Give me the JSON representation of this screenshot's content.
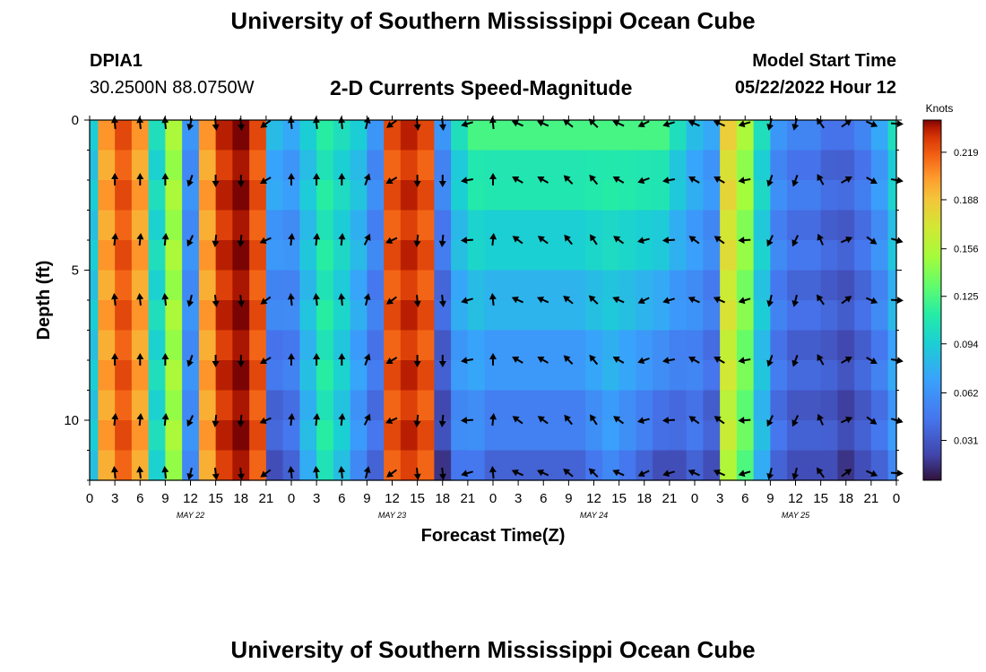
{
  "page": {
    "title": "University of Southern Mississippi Ocean Cube",
    "footer_title": "University of Southern Mississippi Ocean Cube"
  },
  "header": {
    "station_id": "DPIA1",
    "coordinates": "30.2500N  88.0750W",
    "plot_title": "2-D Currents Speed-Magnitude",
    "model_start_label": "Model Start Time",
    "model_start_value": "05/22/2022 Hour 12"
  },
  "chart_data": {
    "type": "heatmap",
    "title": "2-D Currents Speed-Magnitude",
    "xlabel": "Forecast Time(Z)",
    "ylabel": "Depth (ft)",
    "ylim": [
      0,
      12
    ],
    "y_ticks": [
      "0",
      "5",
      "10"
    ],
    "y_tick_values": [
      0,
      5,
      10
    ],
    "x_hours": [
      0,
      3,
      6,
      9,
      12,
      15,
      18,
      21,
      0,
      3,
      6,
      9,
      12,
      15,
      18,
      21,
      0,
      3,
      6,
      9,
      12,
      15,
      18,
      21,
      0,
      3,
      6,
      9,
      12,
      15,
      18,
      21,
      0
    ],
    "x_tick_labels": [
      "0",
      "3",
      "6",
      "9",
      "12",
      "15",
      "18",
      "21",
      "0",
      "3",
      "6",
      "9",
      "12",
      "15",
      "18",
      "21",
      "0",
      "3",
      "6",
      "9",
      "12",
      "15",
      "18",
      "21",
      "0",
      "3",
      "6",
      "9",
      "12",
      "15",
      "18",
      "21",
      "0"
    ],
    "date_labels": [
      "MAY 22",
      "MAY 23",
      "MAY 24",
      "MAY 25"
    ],
    "date_label_hours": [
      12,
      36,
      60,
      84
    ],
    "colorbar": {
      "units": "Knots",
      "ticks": [
        "0.219",
        "0.188",
        "0.156",
        "0.125",
        "0.094",
        "0.062",
        "0.031"
      ],
      "tick_values": [
        0.219,
        0.188,
        0.156,
        0.125,
        0.094,
        0.062,
        0.031
      ],
      "range": [
        0.005,
        0.24
      ]
    },
    "time_hours": [
      0,
      2,
      4,
      6,
      8,
      10,
      12,
      14,
      16,
      18,
      20,
      22,
      24,
      26,
      28,
      30,
      32,
      34,
      36,
      38,
      40,
      42,
      44,
      46,
      48,
      50,
      52,
      54,
      56,
      58,
      60,
      62,
      64,
      66,
      68,
      70,
      72,
      74,
      76,
      78,
      80,
      82,
      84,
      86,
      88,
      90,
      92,
      94,
      96
    ],
    "surface_speed_knots": [
      0.09,
      0.2,
      0.22,
      0.2,
      0.1,
      0.15,
      0.06,
      0.2,
      0.23,
      0.24,
      0.22,
      0.08,
      0.07,
      0.09,
      0.11,
      0.1,
      0.09,
      0.06,
      0.22,
      0.23,
      0.22,
      0.06,
      0.1,
      0.12,
      0.12,
      0.12,
      0.12,
      0.12,
      0.12,
      0.12,
      0.12,
      0.12,
      0.12,
      0.12,
      0.12,
      0.1,
      0.08,
      0.07,
      0.18,
      0.15,
      0.1,
      0.06,
      0.05,
      0.05,
      0.04,
      0.04,
      0.05,
      0.07,
      0.1
    ],
    "bottom_speed_knots": [
      0.09,
      0.2,
      0.22,
      0.2,
      0.1,
      0.15,
      0.06,
      0.2,
      0.23,
      0.24,
      0.22,
      0.03,
      0.04,
      0.08,
      0.11,
      0.09,
      0.06,
      0.04,
      0.22,
      0.23,
      0.22,
      0.02,
      0.05,
      0.05,
      0.04,
      0.04,
      0.04,
      0.04,
      0.04,
      0.04,
      0.05,
      0.06,
      0.05,
      0.04,
      0.03,
      0.03,
      0.04,
      0.03,
      0.16,
      0.13,
      0.08,
      0.04,
      0.03,
      0.03,
      0.03,
      0.02,
      0.03,
      0.04,
      0.06
    ],
    "vector_depths_ft": [
      0,
      2,
      4,
      6,
      8,
      10,
      12
    ],
    "vector_hours": [
      3,
      6,
      9,
      12,
      15,
      18,
      21,
      24,
      27,
      30,
      33,
      36,
      39,
      42,
      45,
      48,
      51,
      54,
      57,
      60,
      63,
      66,
      69,
      72,
      75,
      78,
      81,
      84,
      87,
      90,
      93,
      96
    ],
    "vector_direction_deg": [
      0,
      0,
      0,
      200,
      180,
      180,
      240,
      0,
      0,
      0,
      20,
      240,
      180,
      180,
      260,
      0,
      300,
      300,
      315,
      320,
      300,
      250,
      260,
      300,
      300,
      260,
      200,
      200,
      330,
      60,
      120,
      100
    ]
  }
}
